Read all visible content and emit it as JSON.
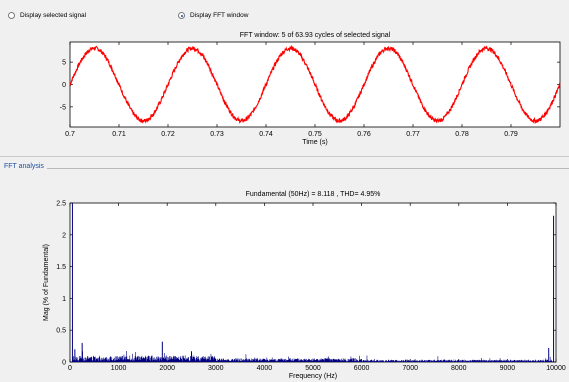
{
  "controls": {
    "display_selected_signal": {
      "label": "Display selected signal",
      "selected": false
    },
    "display_fft_window": {
      "label": "Display FFT window",
      "selected": true
    }
  },
  "fft_panel": {
    "title": "FFT analysis"
  },
  "chart_data": [
    {
      "type": "line",
      "title": "FFT window: 5 of 63.93 cycles of selected signal",
      "xlabel": "Time (s)",
      "ylabel": "",
      "xlim": [
        0.7,
        0.8
      ],
      "ylim": [
        -9.5,
        9.5
      ],
      "xticks": [
        "0.7",
        "0.71",
        "0.72",
        "0.73",
        "0.74",
        "0.75",
        "0.76",
        "0.77",
        "0.78",
        "0.79"
      ],
      "yticks": [
        "5",
        "0",
        "-5"
      ],
      "series": [
        {
          "frequency_hz": 50,
          "amplitude": 8.118,
          "color": "#ff0000"
        }
      ]
    },
    {
      "type": "bar",
      "title": "Fundamental (50Hz) = 8.118 , THD= 4.95%",
      "xlabel": "Frequency (Hz)",
      "ylabel": "Mag (% of Fundamental)",
      "xlim": [
        0,
        10000
      ],
      "ylim": [
        0,
        2.5
      ],
      "xticks": [
        "0",
        "1000",
        "2000",
        "3000",
        "4000",
        "5000",
        "6000",
        "7000",
        "8000",
        "9000",
        "10000"
      ],
      "yticks": [
        "2.5",
        "2",
        "1.5",
        "1",
        "0.5",
        "0"
      ],
      "color": "#000080",
      "peaks": [
        {
          "f": 50,
          "mag": 2.5
        },
        {
          "f": 100,
          "mag": 0.2
        },
        {
          "f": 250,
          "mag": 0.3
        },
        {
          "f": 1900,
          "mag": 0.32
        },
        {
          "f": 2500,
          "mag": 0.17
        },
        {
          "f": 9850,
          "mag": 0.22
        },
        {
          "f": 9950,
          "mag": 2.3
        }
      ]
    }
  ]
}
